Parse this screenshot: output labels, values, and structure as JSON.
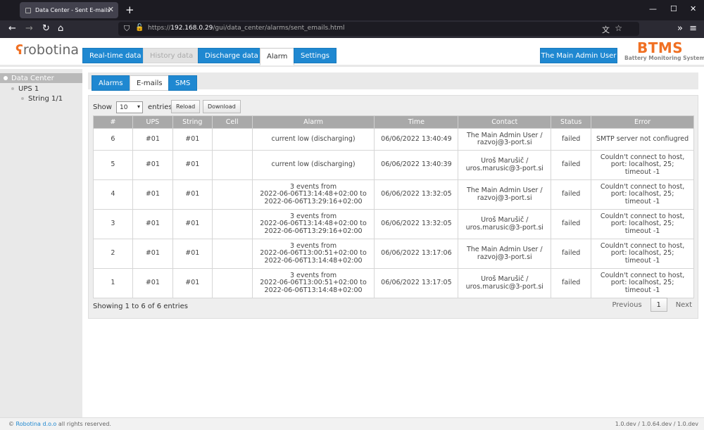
{
  "browser": {
    "tab_title": "Data Center - Sent E-mails",
    "url_prefix": "https://",
    "url_host": "192.168.0.29",
    "url_path": "/gui/data_center/alarms/sent_emails.html"
  },
  "app": {
    "logo_text": "robotina",
    "main_tabs": [
      "Real-time data",
      "History data",
      "Discharge data",
      "Alarm",
      "Settings"
    ],
    "active_tab": "Alarm",
    "user_label": "The Main Admin User",
    "brand_title": "BTMS",
    "brand_subtitle": "Battery Monitoring System"
  },
  "sidebar": {
    "root": "Data Center",
    "ups": "UPS 1",
    "string": "String 1/1"
  },
  "subtabs": [
    "Alarms",
    "E-mails",
    "SMS"
  ],
  "toolbar": {
    "show_label": "Show",
    "entries_value": "10",
    "entries_label": "entries",
    "reload_label": "Reload",
    "download_label": "Download"
  },
  "table": {
    "headers": [
      "#",
      "UPS",
      "String",
      "Cell",
      "Alarm",
      "Time",
      "Contact",
      "Status",
      "Error"
    ],
    "rows": [
      {
        "num": "6",
        "ups": "#01",
        "string": "#01",
        "cell": "",
        "alarm": [
          "current low (discharging)"
        ],
        "time": "06/06/2022 13:40:49",
        "contact": [
          "The Main Admin User /",
          "razvoj@3-port.si"
        ],
        "status": "failed",
        "error": [
          "SMTP server not confiugred"
        ]
      },
      {
        "num": "5",
        "ups": "#01",
        "string": "#01",
        "cell": "",
        "alarm": [
          "current low (discharging)"
        ],
        "time": "06/06/2022 13:40:39",
        "contact": [
          "Uroš Marušič /",
          "uros.marusic@3-port.si"
        ],
        "status": "failed",
        "error": [
          "Couldn't connect to host,",
          "port: localhost, 25;",
          "timeout -1"
        ]
      },
      {
        "num": "4",
        "ups": "#01",
        "string": "#01",
        "cell": "",
        "alarm": [
          "3 events from",
          "2022-06-06T13:14:48+02:00 to",
          "2022-06-06T13:29:16+02:00"
        ],
        "time": "06/06/2022 13:32:05",
        "contact": [
          "The Main Admin User /",
          "razvoj@3-port.si"
        ],
        "status": "failed",
        "error": [
          "Couldn't connect to host,",
          "port: localhost, 25;",
          "timeout -1"
        ]
      },
      {
        "num": "3",
        "ups": "#01",
        "string": "#01",
        "cell": "",
        "alarm": [
          "3 events from",
          "2022-06-06T13:14:48+02:00 to",
          "2022-06-06T13:29:16+02:00"
        ],
        "time": "06/06/2022 13:32:05",
        "contact": [
          "Uroš Marušič /",
          "uros.marusic@3-port.si"
        ],
        "status": "failed",
        "error": [
          "Couldn't connect to host,",
          "port: localhost, 25;",
          "timeout -1"
        ]
      },
      {
        "num": "2",
        "ups": "#01",
        "string": "#01",
        "cell": "",
        "alarm": [
          "3 events from",
          "2022-06-06T13:00:51+02:00 to",
          "2022-06-06T13:14:48+02:00"
        ],
        "time": "06/06/2022 13:17:06",
        "contact": [
          "The Main Admin User /",
          "razvoj@3-port.si"
        ],
        "status": "failed",
        "error": [
          "Couldn't connect to host,",
          "port: localhost, 25;",
          "timeout -1"
        ]
      },
      {
        "num": "1",
        "ups": "#01",
        "string": "#01",
        "cell": "",
        "alarm": [
          "3 events from",
          "2022-06-06T13:00:51+02:00 to",
          "2022-06-06T13:14:48+02:00"
        ],
        "time": "06/06/2022 13:17:05",
        "contact": [
          "Uroš Marušič /",
          "uros.marusic@3-port.si"
        ],
        "status": "failed",
        "error": [
          "Couldn't connect to host,",
          "port: localhost, 25;",
          "timeout -1"
        ]
      }
    ]
  },
  "pagination": {
    "info": "Showing 1 to 6 of 6 entries",
    "previous": "Previous",
    "current_page": "1",
    "next": "Next"
  },
  "footer": {
    "copyright_symbol": "©",
    "company": "Robotina d.o.o",
    "rights": "all rights reserved.",
    "version": "1.0.dev / 1.0.64.dev / 1.0.dev"
  },
  "colors": {
    "accent": "#1f88d1",
    "brand": "#f07023"
  }
}
